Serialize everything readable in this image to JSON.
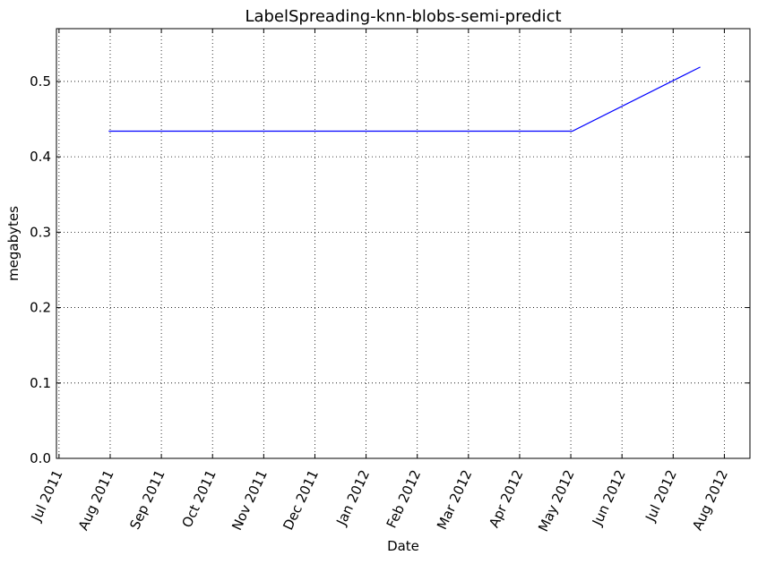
{
  "chart_data": {
    "type": "line",
    "title": "LabelSpreading-knn-blobs-semi-predict",
    "xlabel": "Date",
    "ylabel": "megabytes",
    "x_ticks": [
      "Jul 2011",
      "Aug 2011",
      "Sep 2011",
      "Oct 2011",
      "Nov 2011",
      "Dec 2011",
      "Jan 2012",
      "Feb 2012",
      "Mar 2012",
      "Apr 2012",
      "May 2012",
      "Jun 2012",
      "Jul 2012",
      "Aug 2012"
    ],
    "y_ticks": [
      "0.0",
      "0.1",
      "0.2",
      "0.3",
      "0.4",
      "0.5"
    ],
    "ylim": [
      0,
      0.57
    ],
    "x_domain_months": [
      -0.05,
      13.5
    ],
    "grid": true,
    "series": [
      {
        "name": "megabytes",
        "color": "#0000ff",
        "points": [
          {
            "x_month": 0.97,
            "date": "2011-07-30",
            "y": 0.434
          },
          {
            "x_month": 10.03,
            "date": "2012-05-01",
            "y": 0.434
          },
          {
            "x_month": 12.53,
            "date": "2012-07-16",
            "y": 0.519
          }
        ]
      }
    ]
  }
}
